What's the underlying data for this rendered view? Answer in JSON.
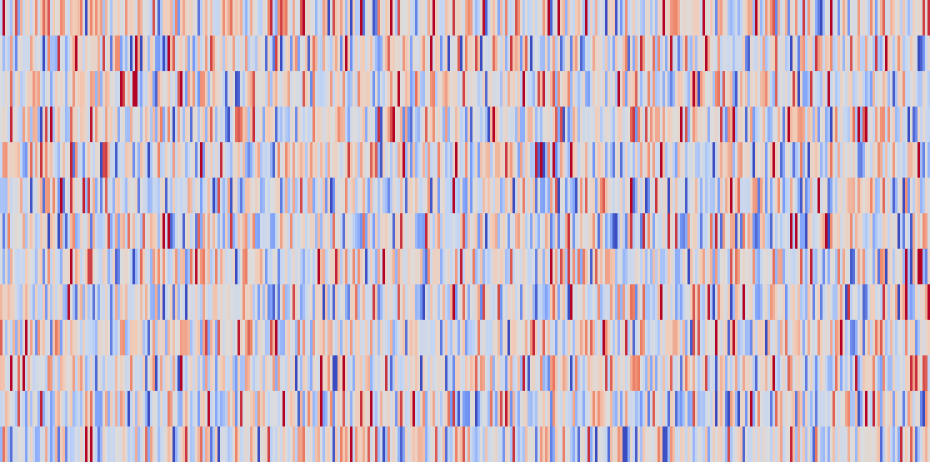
{
  "chart_data": {
    "type": "heatmap",
    "title": "",
    "xlabel": "",
    "ylabel": "",
    "colormap": "coolwarm",
    "colormap_stops": [
      "#3b4cc0",
      "#7b9ff9",
      "#c0d4f5",
      "#dddcdc",
      "#f2cbb7",
      "#ee8468",
      "#b40426"
    ],
    "value_range": [
      -1,
      1
    ],
    "rows": 13,
    "columns": 372,
    "grid": false,
    "legend": "none",
    "axes_visible": false,
    "row_summaries": [
      {
        "row": 1,
        "mean": 0.05,
        "spread": 0.45
      },
      {
        "row": 2,
        "mean": -0.05,
        "spread": 0.45
      },
      {
        "row": 3,
        "mean": 0.05,
        "spread": 0.45
      },
      {
        "row": 4,
        "mean": 0.0,
        "spread": 0.45
      },
      {
        "row": 5,
        "mean": 0.0,
        "spread": 0.45
      },
      {
        "row": 6,
        "mean": -0.05,
        "spread": 0.45
      },
      {
        "row": 7,
        "mean": -0.05,
        "spread": 0.45
      },
      {
        "row": 8,
        "mean": 0.0,
        "spread": 0.45
      },
      {
        "row": 9,
        "mean": -0.05,
        "spread": 0.45
      },
      {
        "row": 10,
        "mean": 0.0,
        "spread": 0.45
      },
      {
        "row": 11,
        "mean": 0.0,
        "spread": 0.45
      },
      {
        "row": 12,
        "mean": -0.05,
        "spread": 0.45
      },
      {
        "row": 13,
        "mean": -0.05,
        "spread": 0.45
      }
    ]
  }
}
